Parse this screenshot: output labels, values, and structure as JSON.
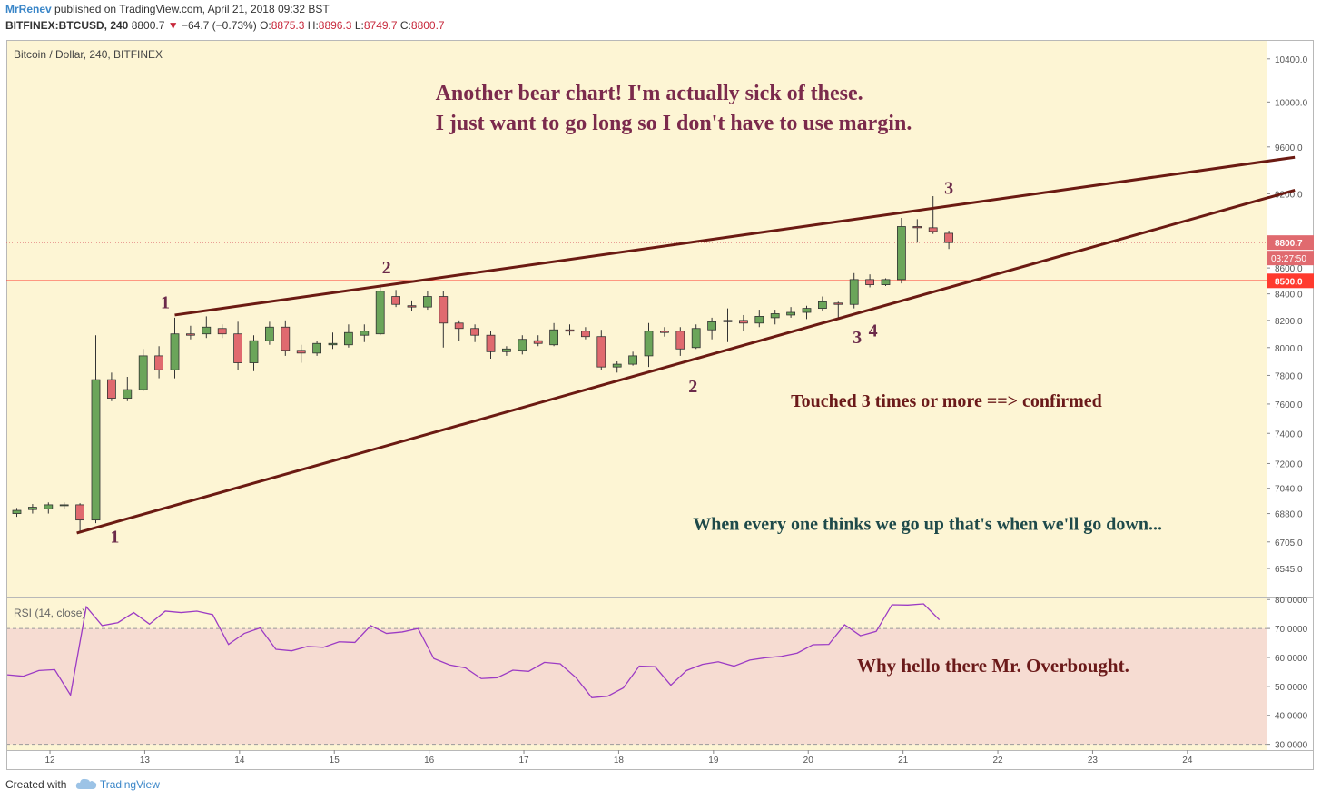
{
  "header": {
    "author": "MrRenev",
    "published": "published on TradingView.com, April 21, 2018 09:32 BST",
    "symbol": "BITFINEX:BTCUSD, 240",
    "last": "8800.7",
    "change": "−64.7 (−0.73%)",
    "open_label": "O:",
    "open": "8875.3",
    "high_label": "H:",
    "high": "8896.3",
    "low_label": "L:",
    "low": "8749.7",
    "close_label": "C:",
    "close": "8800.7"
  },
  "footer": {
    "created_with": "Created with",
    "brand": "TradingView"
  },
  "colors": {
    "background": "#fdf5d4",
    "up_candle": "#6ba55a",
    "down_candle": "#e06a6f",
    "trendline": "#6b1a12",
    "support_line": "#ff3a2e",
    "rsi_line": "#9c3bc4",
    "rsi_band": "#f6dcd2",
    "annotation": "#7a2440",
    "annotation_teal": "#1f4a4a"
  },
  "chart_data": [
    {
      "type": "candlestick",
      "title": "Bitcoin / Dollar, 240, BITFINEX",
      "y_scale": "log",
      "ylim": [
        6380,
        10580
      ],
      "y_ticks": [
        "10400.0",
        "10000.0",
        "9600.0",
        "9200.0",
        "8600.0",
        "8400.0",
        "8200.0",
        "8000.0",
        "7800.0",
        "7600.0",
        "7400.0",
        "7200.0",
        "7040.0",
        "6880.0",
        "6705.0",
        "6545.0"
      ],
      "x_ticks": [
        "12",
        "13",
        "14",
        "15",
        "16",
        "17",
        "18",
        "19",
        "20",
        "21",
        "22",
        "23",
        "24"
      ],
      "price_tag": {
        "value": 8800.7,
        "label": "8800.7",
        "timer": "03:27:50"
      },
      "support": {
        "value": 8500,
        "label": "8500.0"
      },
      "candles": [
        {
          "o": 6880,
          "h": 6915,
          "l": 6860,
          "c": 6900
        },
        {
          "o": 6905,
          "h": 6940,
          "l": 6880,
          "c": 6920
        },
        {
          "o": 6910,
          "h": 6950,
          "l": 6880,
          "c": 6935
        },
        {
          "o": 6930,
          "h": 6950,
          "l": 6910,
          "c": 6935
        },
        {
          "o": 6935,
          "h": 6945,
          "l": 6760,
          "c": 6840
        },
        {
          "o": 6840,
          "h": 8090,
          "l": 6820,
          "c": 7770
        },
        {
          "o": 7770,
          "h": 7820,
          "l": 7620,
          "c": 7640
        },
        {
          "o": 7640,
          "h": 7790,
          "l": 7620,
          "c": 7700
        },
        {
          "o": 7700,
          "h": 7990,
          "l": 7690,
          "c": 7940
        },
        {
          "o": 7940,
          "h": 8010,
          "l": 7780,
          "c": 7840
        },
        {
          "o": 7840,
          "h": 8220,
          "l": 7780,
          "c": 8100
        },
        {
          "o": 8100,
          "h": 8160,
          "l": 8060,
          "c": 8090
        },
        {
          "o": 8100,
          "h": 8230,
          "l": 8070,
          "c": 8150
        },
        {
          "o": 8140,
          "h": 8170,
          "l": 8070,
          "c": 8100
        },
        {
          "o": 8100,
          "h": 8190,
          "l": 7840,
          "c": 7890
        },
        {
          "o": 7890,
          "h": 8090,
          "l": 7830,
          "c": 8050
        },
        {
          "o": 8050,
          "h": 8190,
          "l": 8020,
          "c": 8150
        },
        {
          "o": 8150,
          "h": 8200,
          "l": 7940,
          "c": 7980
        },
        {
          "o": 7980,
          "h": 8020,
          "l": 7890,
          "c": 7960
        },
        {
          "o": 7960,
          "h": 8050,
          "l": 7940,
          "c": 8030
        },
        {
          "o": 8020,
          "h": 8110,
          "l": 7990,
          "c": 8030
        },
        {
          "o": 8020,
          "h": 8170,
          "l": 8000,
          "c": 8110
        },
        {
          "o": 8090,
          "h": 8170,
          "l": 8040,
          "c": 8120
        },
        {
          "o": 8100,
          "h": 8460,
          "l": 8090,
          "c": 8420
        },
        {
          "o": 8380,
          "h": 8430,
          "l": 8300,
          "c": 8320
        },
        {
          "o": 8310,
          "h": 8350,
          "l": 8270,
          "c": 8300
        },
        {
          "o": 8300,
          "h": 8420,
          "l": 8280,
          "c": 8380
        },
        {
          "o": 8380,
          "h": 8420,
          "l": 8000,
          "c": 8180
        },
        {
          "o": 8180,
          "h": 8200,
          "l": 8050,
          "c": 8140
        },
        {
          "o": 8140,
          "h": 8170,
          "l": 8040,
          "c": 8090
        },
        {
          "o": 8090,
          "h": 8120,
          "l": 7920,
          "c": 7970
        },
        {
          "o": 7970,
          "h": 8010,
          "l": 7940,
          "c": 7990
        },
        {
          "o": 7980,
          "h": 8090,
          "l": 7950,
          "c": 8060
        },
        {
          "o": 8050,
          "h": 8090,
          "l": 8010,
          "c": 8030
        },
        {
          "o": 8020,
          "h": 8180,
          "l": 8010,
          "c": 8130
        },
        {
          "o": 8130,
          "h": 8170,
          "l": 8090,
          "c": 8120
        },
        {
          "o": 8120,
          "h": 8150,
          "l": 8060,
          "c": 8080
        },
        {
          "o": 8080,
          "h": 8130,
          "l": 7840,
          "c": 7860
        },
        {
          "o": 7860,
          "h": 7900,
          "l": 7820,
          "c": 7880
        },
        {
          "o": 7880,
          "h": 7970,
          "l": 7870,
          "c": 7940
        },
        {
          "o": 7940,
          "h": 8180,
          "l": 7860,
          "c": 8120
        },
        {
          "o": 8120,
          "h": 8150,
          "l": 8080,
          "c": 8110
        },
        {
          "o": 8120,
          "h": 8150,
          "l": 7940,
          "c": 7990
        },
        {
          "o": 8000,
          "h": 8170,
          "l": 7990,
          "c": 8140
        },
        {
          "o": 8130,
          "h": 8220,
          "l": 8060,
          "c": 8190
        },
        {
          "o": 8190,
          "h": 8290,
          "l": 8040,
          "c": 8200
        },
        {
          "o": 8200,
          "h": 8240,
          "l": 8120,
          "c": 8180
        },
        {
          "o": 8180,
          "h": 8280,
          "l": 8150,
          "c": 8230
        },
        {
          "o": 8220,
          "h": 8280,
          "l": 8170,
          "c": 8250
        },
        {
          "o": 8240,
          "h": 8300,
          "l": 8220,
          "c": 8260
        },
        {
          "o": 8260,
          "h": 8310,
          "l": 8210,
          "c": 8290
        },
        {
          "o": 8290,
          "h": 8380,
          "l": 8270,
          "c": 8340
        },
        {
          "o": 8330,
          "h": 8340,
          "l": 8220,
          "c": 8320
        },
        {
          "o": 8320,
          "h": 8560,
          "l": 8290,
          "c": 8510
        },
        {
          "o": 8510,
          "h": 8550,
          "l": 8450,
          "c": 8470
        },
        {
          "o": 8470,
          "h": 8520,
          "l": 8460,
          "c": 8510
        },
        {
          "o": 8510,
          "h": 9000,
          "l": 8480,
          "c": 8930
        },
        {
          "o": 8930,
          "h": 8990,
          "l": 8800,
          "c": 8920
        },
        {
          "o": 8920,
          "h": 9180,
          "l": 8870,
          "c": 8890
        },
        {
          "o": 8875.3,
          "h": 8896.3,
          "l": 8749.7,
          "c": 8800.7
        }
      ],
      "trendlines": [
        {
          "name": "upper",
          "start_bar": 10,
          "start_price": 8240,
          "end_bar": 80.9,
          "end_price": 9510
        },
        {
          "name": "lower",
          "start_bar": 3.8,
          "start_price": 6760,
          "end_bar": 80.9,
          "end_price": 9230
        }
      ],
      "annotations": [
        {
          "text": "Another bear chart! I'm actually sick of these.",
          "bar": 26.5,
          "price": 10020
        },
        {
          "text": "I just want to go long so I don't have to use margin.",
          "bar": 26.5,
          "price": 9750
        },
        {
          "text": "Touched 3 times or more ==> confirmed",
          "bar": 49,
          "price": 7580
        },
        {
          "text": "When every one thinks we go up that's when we'll go down...",
          "bar": 42.8,
          "price": 6780
        }
      ],
      "touch_labels": [
        {
          "text": "1",
          "bar": 9.4,
          "price": 8290
        },
        {
          "text": "2",
          "bar": 23.4,
          "price": 8560
        },
        {
          "text": "3",
          "bar": 59,
          "price": 9200
        },
        {
          "text": "1",
          "bar": 6.2,
          "price": 6700
        },
        {
          "text": "2",
          "bar": 42.8,
          "price": 7680
        },
        {
          "text": "3",
          "bar": 53.2,
          "price": 8030
        },
        {
          "text": "4",
          "bar": 54.2,
          "price": 8080
        }
      ]
    },
    {
      "type": "line",
      "label": "RSI (14, close)",
      "ylim": [
        28,
        80.7
      ],
      "y_ticks": [
        "80.0000",
        "70.0000",
        "60.0000",
        "50.0000",
        "40.0000",
        "30.0000"
      ],
      "band": [
        30,
        70
      ],
      "annotation": "Why hello there Mr. Overbought.",
      "values": [
        54,
        53.5,
        55.5,
        55.8,
        47,
        77.5,
        71,
        72,
        75.5,
        71.5,
        76,
        75.5,
        76,
        74.8,
        64.5,
        68.3,
        70.2,
        62.8,
        62.3,
        63.8,
        63.5,
        65.4,
        65.2,
        71,
        68.3,
        68.8,
        70,
        59.6,
        57.4,
        56.4,
        52.7,
        53,
        55.6,
        55.2,
        58.3,
        57.8,
        53,
        46.1,
        46.6,
        49.5,
        57,
        56.8,
        50.4,
        55.5,
        57.6,
        58.5,
        57,
        59.1,
        59.9,
        60.4,
        61.5,
        64.4,
        64.5,
        71.3,
        67.5,
        69,
        78.2,
        78.1,
        78.5,
        73
      ]
    }
  ]
}
